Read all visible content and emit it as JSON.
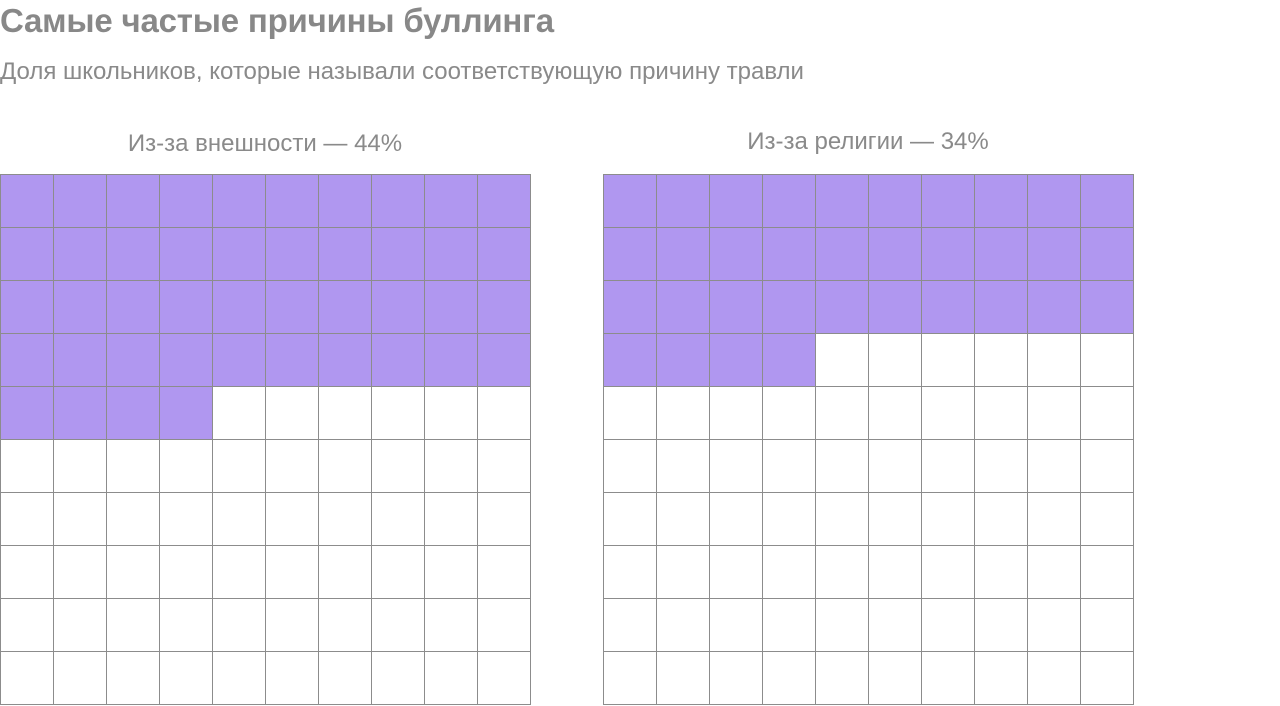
{
  "title": "Самые частые причины буллинга",
  "subtitle": "Доля школьников, которые называли соответствующую причину травли",
  "colors": {
    "filled": "#b097f0",
    "empty": "#ffffff",
    "grid_line": "#8c8c8c",
    "text": "#8a8a8a"
  },
  "chart_data": [
    {
      "type": "waffle",
      "title": "Из-за внешности — 44%",
      "value_percent": 44,
      "total_cells": 100,
      "rows": 10,
      "cols": 10
    },
    {
      "type": "waffle",
      "title": "Из-за религии — 34%",
      "value_percent": 34,
      "total_cells": 100,
      "rows": 10,
      "cols": 10
    }
  ]
}
